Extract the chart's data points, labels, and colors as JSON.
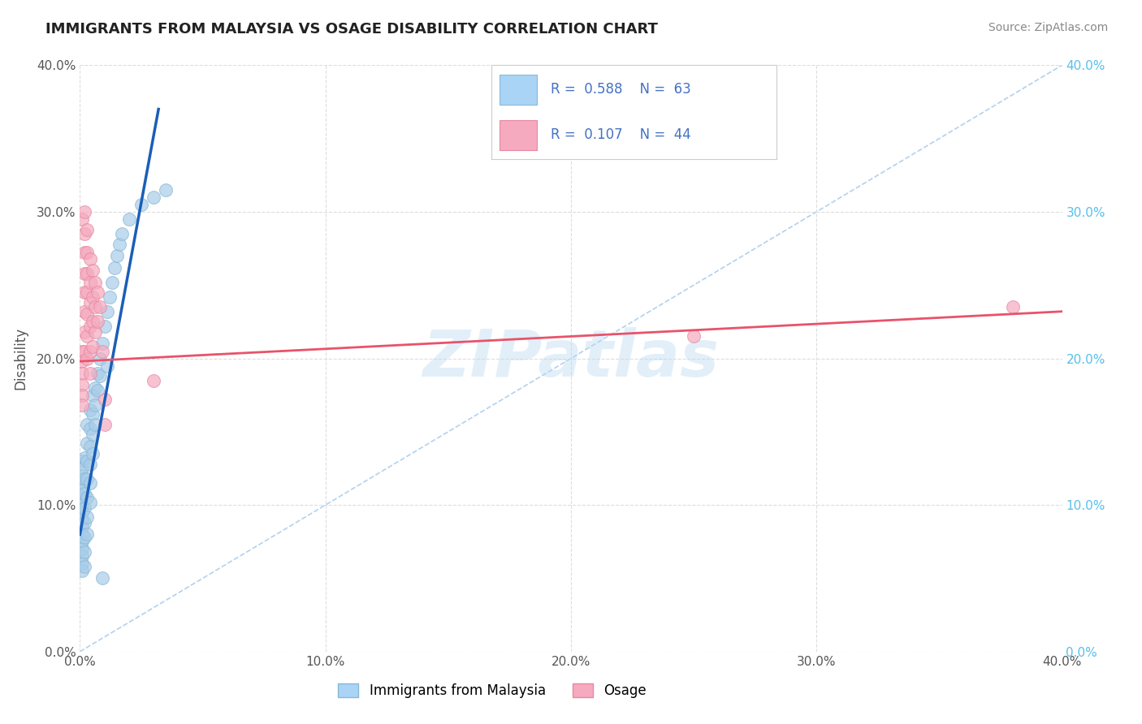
{
  "title": "IMMIGRANTS FROM MALAYSIA VS OSAGE DISABILITY CORRELATION CHART",
  "source": "Source: ZipAtlas.com",
  "ylabel": "Disability",
  "xlim": [
    0.0,
    0.4
  ],
  "ylim": [
    0.0,
    0.4
  ],
  "watermark": "ZIPatlas",
  "blue_scatter": [
    [
      0.001,
      0.13
    ],
    [
      0.001,
      0.125
    ],
    [
      0.001,
      0.12
    ],
    [
      0.001,
      0.115
    ],
    [
      0.001,
      0.11
    ],
    [
      0.001,
      0.105
    ],
    [
      0.001,
      0.1
    ],
    [
      0.001,
      0.095
    ],
    [
      0.001,
      0.09
    ],
    [
      0.001,
      0.085
    ],
    [
      0.001,
      0.08
    ],
    [
      0.001,
      0.075
    ],
    [
      0.001,
      0.07
    ],
    [
      0.001,
      0.065
    ],
    [
      0.001,
      0.06
    ],
    [
      0.001,
      0.055
    ],
    [
      0.002,
      0.132
    ],
    [
      0.002,
      0.118
    ],
    [
      0.002,
      0.108
    ],
    [
      0.002,
      0.098
    ],
    [
      0.002,
      0.088
    ],
    [
      0.002,
      0.078
    ],
    [
      0.002,
      0.068
    ],
    [
      0.002,
      0.058
    ],
    [
      0.003,
      0.155
    ],
    [
      0.003,
      0.142
    ],
    [
      0.003,
      0.13
    ],
    [
      0.003,
      0.118
    ],
    [
      0.003,
      0.105
    ],
    [
      0.003,
      0.092
    ],
    [
      0.003,
      0.08
    ],
    [
      0.004,
      0.165
    ],
    [
      0.004,
      0.152
    ],
    [
      0.004,
      0.14
    ],
    [
      0.004,
      0.128
    ],
    [
      0.004,
      0.115
    ],
    [
      0.004,
      0.102
    ],
    [
      0.005,
      0.175
    ],
    [
      0.005,
      0.162
    ],
    [
      0.005,
      0.148
    ],
    [
      0.005,
      0.135
    ],
    [
      0.006,
      0.18
    ],
    [
      0.006,
      0.168
    ],
    [
      0.006,
      0.155
    ],
    [
      0.007,
      0.19
    ],
    [
      0.007,
      0.178
    ],
    [
      0.008,
      0.2
    ],
    [
      0.008,
      0.188
    ],
    [
      0.009,
      0.21
    ],
    [
      0.01,
      0.222
    ],
    [
      0.011,
      0.232
    ],
    [
      0.012,
      0.242
    ],
    [
      0.013,
      0.252
    ],
    [
      0.014,
      0.262
    ],
    [
      0.015,
      0.27
    ],
    [
      0.016,
      0.278
    ],
    [
      0.017,
      0.285
    ],
    [
      0.02,
      0.295
    ],
    [
      0.025,
      0.305
    ],
    [
      0.03,
      0.31
    ],
    [
      0.035,
      0.315
    ],
    [
      0.009,
      0.05
    ],
    [
      0.011,
      0.195
    ]
  ],
  "pink_scatter": [
    [
      0.001,
      0.205
    ],
    [
      0.001,
      0.198
    ],
    [
      0.001,
      0.19
    ],
    [
      0.001,
      0.182
    ],
    [
      0.001,
      0.175
    ],
    [
      0.001,
      0.168
    ],
    [
      0.001,
      0.295
    ],
    [
      0.002,
      0.3
    ],
    [
      0.002,
      0.285
    ],
    [
      0.002,
      0.272
    ],
    [
      0.002,
      0.258
    ],
    [
      0.002,
      0.245
    ],
    [
      0.002,
      0.232
    ],
    [
      0.002,
      0.218
    ],
    [
      0.002,
      0.205
    ],
    [
      0.003,
      0.288
    ],
    [
      0.003,
      0.272
    ],
    [
      0.003,
      0.258
    ],
    [
      0.003,
      0.245
    ],
    [
      0.003,
      0.23
    ],
    [
      0.003,
      0.215
    ],
    [
      0.003,
      0.2
    ],
    [
      0.004,
      0.268
    ],
    [
      0.004,
      0.252
    ],
    [
      0.004,
      0.238
    ],
    [
      0.004,
      0.222
    ],
    [
      0.004,
      0.205
    ],
    [
      0.004,
      0.19
    ],
    [
      0.005,
      0.26
    ],
    [
      0.005,
      0.242
    ],
    [
      0.005,
      0.225
    ],
    [
      0.005,
      0.208
    ],
    [
      0.006,
      0.252
    ],
    [
      0.006,
      0.235
    ],
    [
      0.006,
      0.218
    ],
    [
      0.007,
      0.245
    ],
    [
      0.007,
      0.225
    ],
    [
      0.008,
      0.235
    ],
    [
      0.009,
      0.205
    ],
    [
      0.01,
      0.172
    ],
    [
      0.01,
      0.155
    ],
    [
      0.03,
      0.185
    ],
    [
      0.25,
      0.215
    ],
    [
      0.38,
      0.235
    ]
  ],
  "blue_line_x": [
    0.0,
    0.032
  ],
  "blue_line_y": [
    0.08,
    0.37
  ],
  "pink_line_x": [
    0.0,
    0.4
  ],
  "pink_line_y": [
    0.198,
    0.232
  ],
  "dashed_line_x": [
    0.0,
    0.4
  ],
  "dashed_line_y": [
    0.0,
    0.4
  ],
  "background_color": "#ffffff",
  "grid_color": "#dddddd",
  "blue_scatter_face": "#a8cce8",
  "blue_scatter_edge": "#88b8d8",
  "pink_scatter_face": "#f5aabf",
  "pink_scatter_edge": "#e888a0",
  "blue_line_color": "#1a5eb8",
  "pink_line_color": "#e8536a",
  "dashed_line_color": "#aaccee",
  "title_color": "#222222",
  "source_color": "#888888",
  "right_tick_color": "#56bfee",
  "legend_text_color": "#4472c4",
  "watermark_color": "#b8d8f0",
  "legend_blue_face": "#aad4f5",
  "legend_pink_face": "#f5aabf"
}
